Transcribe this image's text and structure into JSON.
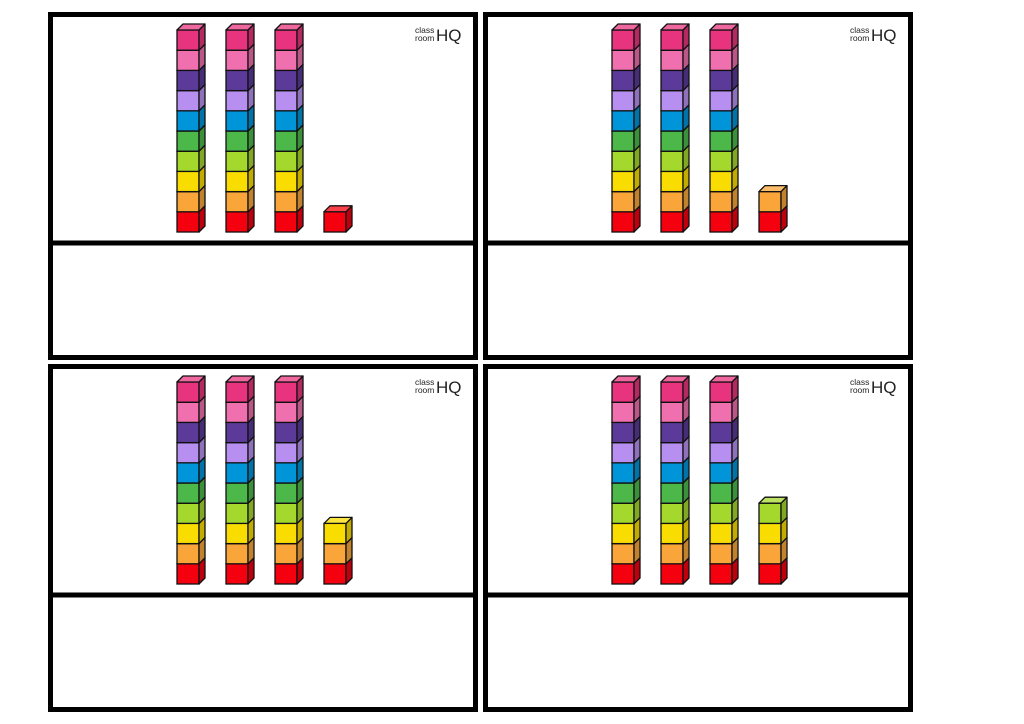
{
  "logo": {
    "line1": "class",
    "line2": "room",
    "brand": "HQ"
  },
  "cards": [
    {
      "tens": 3,
      "ones": 1
    },
    {
      "tens": 3,
      "ones": 2
    },
    {
      "tens": 3,
      "ones": 3
    },
    {
      "tens": 3,
      "ones": 4
    }
  ]
}
